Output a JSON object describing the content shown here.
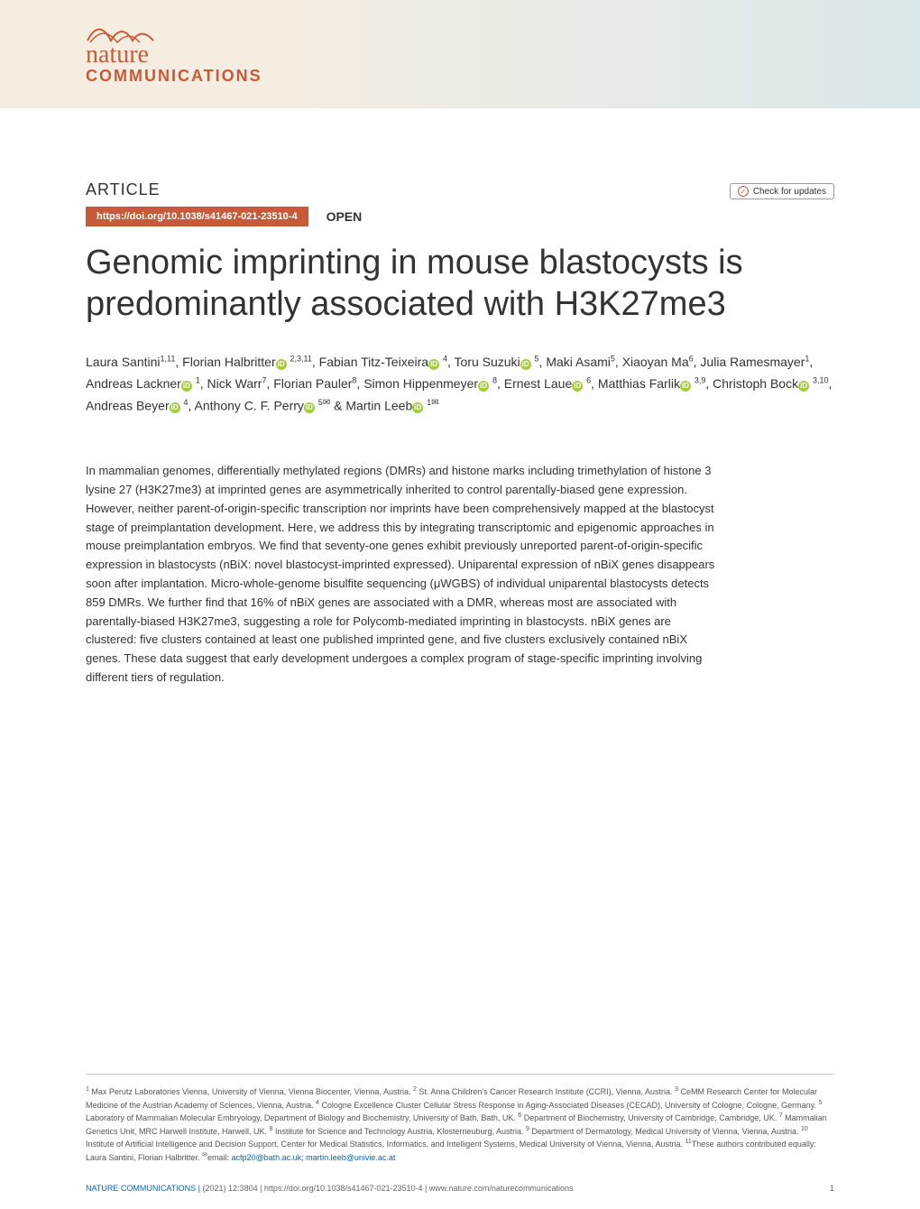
{
  "journal": {
    "logo_nature": "nature",
    "logo_communications": "COMMUNICATIONS",
    "logo_color": "#c75b39"
  },
  "banner": {
    "gradient_start": "#f5ede0",
    "gradient_end": "#d9e8ea"
  },
  "article": {
    "section_label": "ARTICLE",
    "doi": "https://doi.org/10.1038/s41467-021-23510-4",
    "open_access": "OPEN",
    "check_updates": "Check for updates",
    "title": "Genomic imprinting in mouse blastocysts is predominantly associated with H3K27me3",
    "authors_html": "Laura Santini<sup>1,11</sup>, Florian Halbritter<span class='orcid-icon'>iD</span> <sup>2,3,11</sup>, Fabian Titz-Teixeira<span class='orcid-icon'>iD</span> <sup>4</sup>, Toru Suzuki<span class='orcid-icon'>iD</span> <sup>5</sup>, Maki Asami<sup>5</sup>, Xiaoyan Ma<sup>6</sup>, Julia Ramesmayer<sup>1</sup>, Andreas Lackner<span class='orcid-icon'>iD</span> <sup>1</sup>, Nick Warr<sup>7</sup>, Florian Pauler<sup>8</sup>, Simon Hippenmeyer<span class='orcid-icon'>iD</span> <sup>8</sup>, Ernest Laue<span class='orcid-icon'>iD</span> <sup>6</sup>, Matthias Farlik<span class='orcid-icon'>iD</span> <sup>3,9</sup>, Christoph Bock<span class='orcid-icon'>iD</span> <sup>3,10</sup>, Andreas Beyer<span class='orcid-icon'>iD</span> <sup>4</sup>, Anthony C. F. Perry<span class='orcid-icon'>iD</span> <sup>5<span class='mail-icon'>✉</span></sup> & Martin Leeb<span class='orcid-icon'>iD</span> <sup>1<span class='mail-icon'>✉</span></sup>",
    "abstract": "In mammalian genomes, differentially methylated regions (DMRs) and histone marks including trimethylation of histone 3 lysine 27 (H3K27me3) at imprinted genes are asymmetrically inherited to control parentally-biased gene expression. However, neither parent-of-origin-specific transcription nor imprints have been comprehensively mapped at the blastocyst stage of preimplantation development. Here, we address this by integrating transcriptomic and epigenomic approaches in mouse preimplantation embryos. We find that seventy-one genes exhibit previously unreported parent-of-origin-specific expression in blastocysts (nBiX: novel blastocyst-imprinted expressed). Uniparental expression of nBiX genes disappears soon after implantation. Micro-whole-genome bisulfite sequencing (μWGBS) of individual uniparental blastocysts detects 859 DMRs. We further find that 16% of nBiX genes are associated with a DMR, whereas most are associated with parentally-biased H3K27me3, suggesting a role for Polycomb-mediated imprinting in blastocysts. nBiX genes are clustered: five clusters contained at least one published imprinted gene, and five clusters exclusively contained nBiX genes. These data suggest that early development undergoes a complex program of stage-specific imprinting involving different tiers of regulation."
  },
  "affiliations_html": "<sup>1</sup> Max Perutz Laboratories Vienna, University of Vienna, Vienna Biocenter, Vienna, Austria. <sup>2</sup> St. Anna Children's Cancer Research Institute (CCRI), Vienna, Austria. <sup>3</sup> CeMM Research Center for Molecular Medicine of the Austrian Academy of Sciences, Vienna, Austria. <sup>4</sup> Cologne Excellence Cluster Cellular Stress Response in Aging-Associated Diseases (CECAD), University of Cologne, Cologne, Germany. <sup>5</sup> Laboratory of Mammalian Molecular Embryology, Department of Biology and Biochemistry, University of Bath, Bath, UK. <sup>6</sup> Department of Biochemistry, University of Cambridge, Cambridge, UK. <sup>7</sup> Mammalian Genetics Unit, MRC Harwell Institute, Harwell, UK. <sup>8</sup> Institute for Science and Technology Austria, Klosterneuburg, Austria. <sup>9</sup> Department of Dermatology, Medical University of Vienna, Vienna, Austria. <sup>10</sup> Institute of Artificial Intelligence and Decision Support, Center for Medical Statistics, Informatics, and Intelligent Systems, Medical University of Vienna, Vienna, Austria. <sup>11</sup>These authors contributed equally: Laura Santini, Florian Halbritter. <sup>✉</sup>email: <span class='email-link'>acfp20@bath.ac.uk</span>; <span class='email-link'>martin.leeb@univie.ac.at</span>",
  "footer": {
    "journal_name": "NATURE COMMUNICATIONS |",
    "citation": "(2021) 12:3804 | https://doi.org/10.1038/s41467-021-23510-4 | www.nature.com/naturecommunications",
    "page": "1"
  },
  "styles": {
    "title_fontsize": 38,
    "title_color": "#333333",
    "doi_bar_bg": "#c75b39",
    "doi_bar_text": "#ffffff",
    "orcid_color": "#a6ce39",
    "link_color": "#0066cc",
    "body_text_color": "#333333",
    "affiliation_text_color": "#555555"
  }
}
